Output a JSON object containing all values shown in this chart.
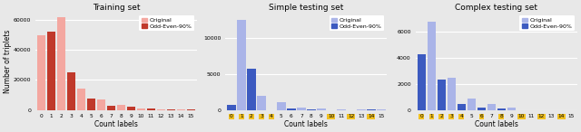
{
  "titles": [
    "Training set",
    "Simple testing set",
    "Complex testing set"
  ],
  "xlabel": "Count labels",
  "ylabel": "Number of triplets",
  "labels": [
    0,
    1,
    2,
    3,
    4,
    5,
    6,
    7,
    8,
    9,
    10,
    11,
    12,
    13,
    14,
    15
  ],
  "train_original": [
    50000,
    0,
    62000,
    0,
    14000,
    0,
    7000,
    0,
    3200,
    0,
    800,
    0,
    300,
    0,
    100,
    0
  ],
  "train_oddeven": [
    0,
    52000,
    0,
    25000,
    0,
    7500,
    0,
    3000,
    0,
    2200,
    0,
    800,
    0,
    250,
    0,
    100
  ],
  "simple_original": [
    0,
    12500,
    0,
    1900,
    0,
    1100,
    0,
    300,
    0,
    150,
    0,
    80,
    0,
    30,
    0,
    20
  ],
  "simple_oddeven": [
    700,
    0,
    5700,
    0,
    0,
    0,
    200,
    0,
    100,
    0,
    0,
    0,
    0,
    0,
    50,
    0
  ],
  "complex_original": [
    0,
    6800,
    0,
    2500,
    0,
    900,
    0,
    450,
    0,
    150,
    0,
    0,
    0,
    0,
    0,
    0
  ],
  "complex_oddeven": [
    4300,
    0,
    2350,
    0,
    450,
    0,
    200,
    0,
    80,
    0,
    0,
    0,
    0,
    0,
    0,
    0
  ],
  "color_light_red": "#f4a7a0",
  "color_dark_red": "#c0392b",
  "color_light_blue": "#aab4e8",
  "color_dark_blue": "#3c5ac0",
  "ylim_train": [
    0,
    65000
  ],
  "ylim_simple": [
    0,
    13500
  ],
  "ylim_complex": [
    0,
    7500
  ],
  "yticks_train": [
    0,
    20000,
    40000,
    60000
  ],
  "yticks_simple": [
    0,
    5000,
    10000
  ],
  "yticks_complex": [
    0,
    2000,
    4000,
    6000
  ],
  "highlighted_labels_simple": [
    0,
    1,
    2,
    3,
    4,
    10,
    12,
    14
  ],
  "highlighted_labels_complex": [
    0,
    1,
    2,
    3,
    4,
    6,
    8,
    10,
    12,
    14
  ],
  "bg_color": "#e8e8e8",
  "fig_bg_color": "#e8e8e8"
}
